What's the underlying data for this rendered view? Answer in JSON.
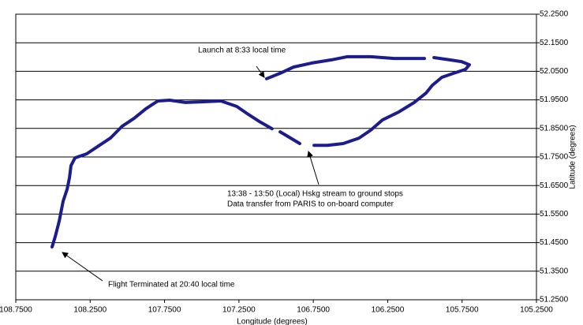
{
  "chart_data": {
    "type": "line",
    "x_label": "Longitude (degrees)",
    "y_label": "Latitude (degrees)",
    "xlim": [
      108.75,
      105.25
    ],
    "xticks": [
      {
        "value": 108.75,
        "label": "108.7500"
      },
      {
        "value": 108.25,
        "label": "108.2500"
      },
      {
        "value": 107.75,
        "label": "107.7500"
      },
      {
        "value": 107.25,
        "label": "107.2500"
      },
      {
        "value": 106.75,
        "label": "106.7500"
      },
      {
        "value": 106.25,
        "label": "106.2500"
      },
      {
        "value": 105.75,
        "label": "105.7500"
      },
      {
        "value": 105.25,
        "label": "105.2500"
      }
    ],
    "ylim": [
      51.25,
      52.25
    ],
    "yticks": [
      {
        "value": 51.25,
        "label": "51.2500"
      },
      {
        "value": 51.35,
        "label": "51.3500"
      },
      {
        "value": 51.45,
        "label": "51.4500"
      },
      {
        "value": 51.55,
        "label": "51.5500"
      },
      {
        "value": 51.65,
        "label": "51.6500"
      },
      {
        "value": 51.75,
        "label": "51.7500"
      },
      {
        "value": 51.85,
        "label": "51.8500"
      },
      {
        "value": 51.95,
        "label": "51.9500"
      },
      {
        "value": 52.05,
        "label": "52.0500"
      },
      {
        "value": 52.15,
        "label": "52.1500"
      },
      {
        "value": 52.25,
        "label": "52.2500"
      }
    ],
    "grid": true,
    "series": [
      {
        "color": "#1c1c8c",
        "x": [
          107.064,
          106.973,
          106.883,
          106.761,
          106.629,
          106.523,
          106.364,
          106.205,
          106.003,
          null,
          105.939,
          105.833,
          105.754,
          105.701,
          105.727,
          105.807,
          105.886,
          105.95,
          105.992,
          106.072,
          106.178,
          106.284,
          106.364,
          106.443,
          106.549,
          106.655,
          106.745,
          null,
          106.841,
          106.973,
          null,
          107.027,
          107.106,
          107.186,
          107.265,
          107.371,
          107.504,
          107.61,
          107.716,
          107.795,
          107.875,
          107.955,
          108.034,
          108.114,
          108.193,
          108.273,
          108.352,
          108.379,
          108.389,
          108.405,
          108.432,
          108.458,
          108.485,
          108.506
        ],
        "y": [
          52.024,
          52.043,
          52.065,
          52.079,
          52.09,
          52.101,
          52.101,
          52.095,
          52.095,
          null,
          52.098,
          52.09,
          52.084,
          52.073,
          52.057,
          52.043,
          52.029,
          52.001,
          51.974,
          51.941,
          51.907,
          51.88,
          51.844,
          51.816,
          51.797,
          51.791,
          51.791,
          null,
          51.797,
          51.838,
          null,
          51.849,
          51.872,
          51.899,
          51.927,
          51.946,
          51.943,
          51.941,
          51.949,
          51.946,
          51.919,
          51.885,
          51.858,
          51.816,
          51.789,
          51.761,
          51.747,
          51.72,
          51.678,
          51.637,
          51.595,
          51.526,
          51.471,
          51.435
        ]
      }
    ],
    "annotations": [
      "Launch at 8:33 local time",
      "13:38 - 13:50 (Local) Hskg stream to ground stops",
      "Data transfer from PARIS to on-board computer",
      "Flight Terminated at 20:40 local time"
    ]
  }
}
